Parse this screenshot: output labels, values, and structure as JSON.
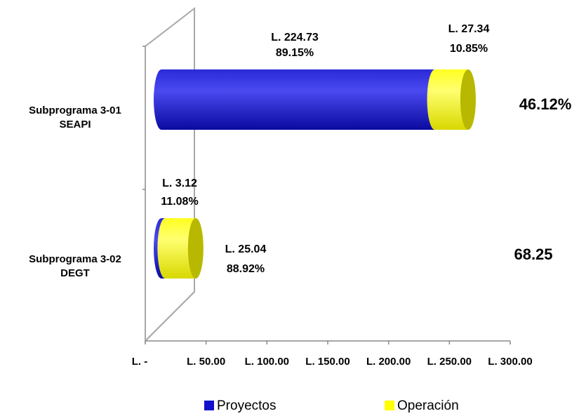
{
  "chart_data": {
    "type": "bar",
    "orientation": "horizontal",
    "stacked": true,
    "style": "3d-cylinder",
    "categories": [
      [
        "Subprograma 3-01",
        "SEAPI"
      ],
      [
        "Subprograma 3-02",
        "DEGT"
      ]
    ],
    "series": [
      {
        "name": "Proyectos",
        "color": "#1111cc",
        "values": [
          224.73,
          3.12
        ],
        "data_labels": [
          [
            "L. 224.73",
            "89.15%"
          ],
          [
            "L. 3.12",
            "11.08%"
          ]
        ]
      },
      {
        "name": "Operación",
        "color": "#ffff00",
        "values": [
          27.34,
          25.04
        ],
        "data_labels": [
          [
            "L. 27.34",
            "10.85%"
          ],
          [
            "L. 25.04",
            "88.92%"
          ]
        ]
      }
    ],
    "side_labels": [
      "46.12%",
      "68.25"
    ],
    "xlim": [
      0,
      300
    ],
    "x_ticks": [
      0,
      50,
      100,
      150,
      200,
      250,
      300
    ],
    "x_tick_labels": [
      "L. -",
      "L. 50.00",
      "L. 100.00",
      "L. 150.00",
      "L. 200.00",
      "L. 250.00",
      "L. 300.00"
    ],
    "title": "",
    "xlabel": "",
    "ylabel": "",
    "grid": false,
    "legend_position": "bottom"
  }
}
